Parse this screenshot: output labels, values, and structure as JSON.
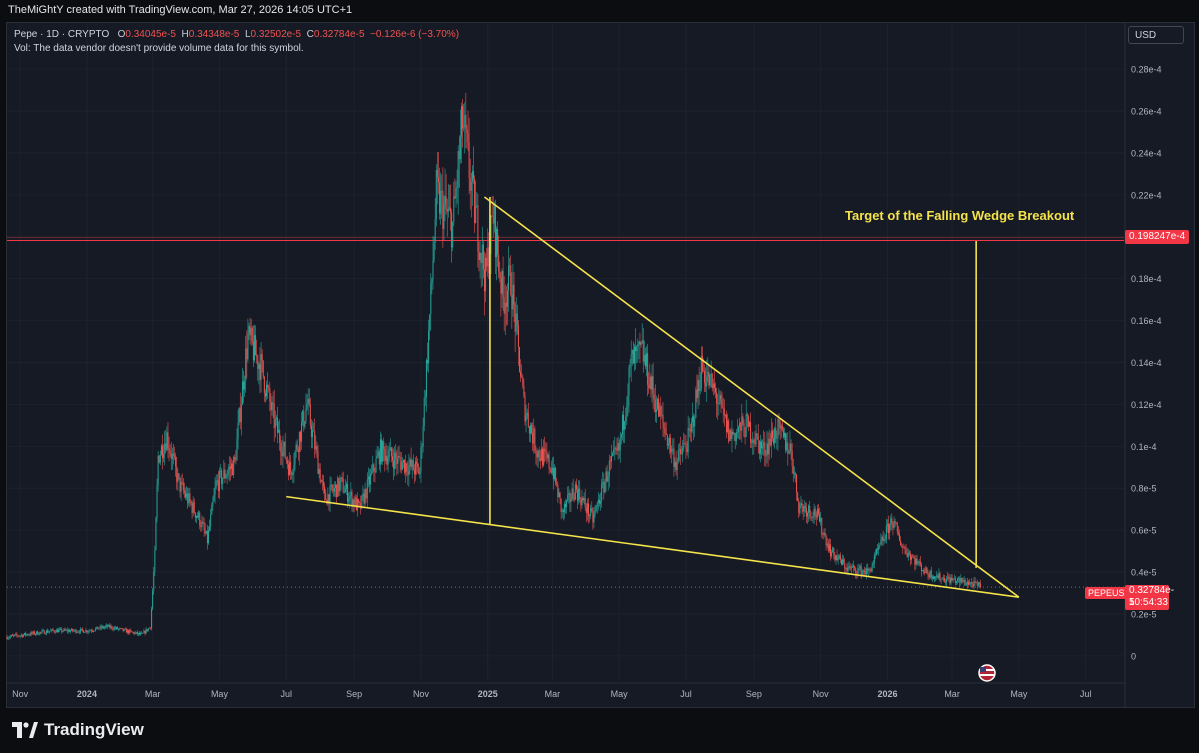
{
  "header": {
    "credit": "TheMiGhtY created with TradingView.com, Mar 27, 2026 14:05 UTC+1"
  },
  "legend": {
    "symbol": "Pepe · 1D · CRYPTO",
    "o_label": "O",
    "o_value": "0.34045e-5",
    "h_label": "H",
    "h_value": "0.34348e-5",
    "l_label": "L",
    "l_value": "0.32502e-5",
    "c_label": "C",
    "c_value": "0.32784e-5",
    "change": "−0.126e-6 (−3.70%)",
    "volume_note": "Vol: The data vendor doesn't provide volume data for this symbol."
  },
  "currency": "USD",
  "tags": {
    "target_price": "0.198247e-4",
    "symbol": "PEPEUSD",
    "last_price": "0.32784e-5",
    "countdown": "10:54:33"
  },
  "annotation": "Target of the Falling Wedge Breakout",
  "branding": "TradingView",
  "colors": {
    "up": "#26a69a",
    "down": "#ef5350",
    "wedge": "#f5e34b",
    "target_line": "#f23645",
    "background": "#161a25"
  },
  "chart_data": {
    "type": "candlestick",
    "symbol": "PEPEUSD",
    "interval": "1D",
    "x_ticks": [
      {
        "label": "Nov",
        "date": "2023-11-01"
      },
      {
        "label": "2024",
        "date": "2024-01-01"
      },
      {
        "label": "Mar",
        "date": "2024-03-01"
      },
      {
        "label": "May",
        "date": "2024-05-01"
      },
      {
        "label": "Jul",
        "date": "2024-07-01"
      },
      {
        "label": "Sep",
        "date": "2024-09-01"
      },
      {
        "label": "Nov",
        "date": "2024-11-01"
      },
      {
        "label": "2025",
        "date": "2025-01-01"
      },
      {
        "label": "Mar",
        "date": "2025-03-01"
      },
      {
        "label": "May",
        "date": "2025-05-01"
      },
      {
        "label": "Jul",
        "date": "2025-07-01"
      },
      {
        "label": "Sep",
        "date": "2025-09-01"
      },
      {
        "label": "Nov",
        "date": "2025-11-01"
      },
      {
        "label": "2026",
        "date": "2026-01-01"
      },
      {
        "label": "Mar",
        "date": "2026-03-01"
      },
      {
        "label": "May",
        "date": "2026-05-01"
      },
      {
        "label": "Jul",
        "date": "2026-07-01"
      }
    ],
    "y_ticks": [
      {
        "label": "0",
        "value": 0
      },
      {
        "label": "0.2e-5",
        "value": 0.2
      },
      {
        "label": "0.4e-5",
        "value": 0.4
      },
      {
        "label": "0.6e-5",
        "value": 0.6
      },
      {
        "label": "0.8e-5",
        "value": 0.8
      },
      {
        "label": "0.1e-4",
        "value": 1.0
      },
      {
        "label": "0.12e-4",
        "value": 1.2
      },
      {
        "label": "0.14e-4",
        "value": 1.4
      },
      {
        "label": "0.16e-4",
        "value": 1.6
      },
      {
        "label": "0.18e-4",
        "value": 1.8
      },
      {
        "label": "0.2e-4",
        "value": 2.0
      },
      {
        "label": "0.22e-4",
        "value": 2.2
      },
      {
        "label": "0.24e-4",
        "value": 2.4
      },
      {
        "label": "0.26e-4",
        "value": 2.6
      },
      {
        "label": "0.28e-4",
        "value": 2.8
      }
    ],
    "x_range": [
      "2023-10-20",
      "2026-08-05"
    ],
    "y_range": [
      -0.12,
      2.92
    ],
    "y_unit": "1e-5 USD",
    "price_path": [
      [
        "2023-10-20",
        0.09
      ],
      [
        "2023-12-01",
        0.12
      ],
      [
        "2024-01-01",
        0.12
      ],
      [
        "2024-01-20",
        0.14
      ],
      [
        "2024-02-20",
        0.1
      ],
      [
        "2024-02-28",
        0.14
      ],
      [
        "2024-03-03",
        0.48
      ],
      [
        "2024-03-06",
        0.95
      ],
      [
        "2024-03-14",
        1.05
      ],
      [
        "2024-03-25",
        0.82
      ],
      [
        "2024-04-13",
        0.65
      ],
      [
        "2024-04-20",
        0.55
      ],
      [
        "2024-04-28",
        0.82
      ],
      [
        "2024-05-15",
        0.92
      ],
      [
        "2024-05-22",
        1.28
      ],
      [
        "2024-05-27",
        1.52
      ],
      [
        "2024-06-08",
        1.38
      ],
      [
        "2024-06-20",
        1.12
      ],
      [
        "2024-07-05",
        0.88
      ],
      [
        "2024-07-20",
        1.2
      ],
      [
        "2024-08-05",
        0.75
      ],
      [
        "2024-08-20",
        0.82
      ],
      [
        "2024-09-06",
        0.7
      ],
      [
        "2024-09-25",
        0.98
      ],
      [
        "2024-10-15",
        0.92
      ],
      [
        "2024-10-31",
        0.88
      ],
      [
        "2024-11-10",
        1.7
      ],
      [
        "2024-11-15",
        2.2
      ],
      [
        "2024-11-30",
        2.05
      ],
      [
        "2024-12-09",
        2.55
      ],
      [
        "2024-12-18",
        2.2
      ],
      [
        "2024-12-30",
        1.8
      ],
      [
        "2025-01-06",
        2.1
      ],
      [
        "2025-01-15",
        1.7
      ],
      [
        "2025-01-22",
        1.8
      ],
      [
        "2025-02-03",
        1.2
      ],
      [
        "2025-02-15",
        0.98
      ],
      [
        "2025-03-01",
        0.9
      ],
      [
        "2025-03-10",
        0.68
      ],
      [
        "2025-03-22",
        0.8
      ],
      [
        "2025-04-07",
        0.65
      ],
      [
        "2025-04-22",
        0.9
      ],
      [
        "2025-05-01",
        0.98
      ],
      [
        "2025-05-12",
        1.4
      ],
      [
        "2025-05-22",
        1.45
      ],
      [
        "2025-06-05",
        1.18
      ],
      [
        "2025-06-22",
        0.92
      ],
      [
        "2025-07-05",
        1.05
      ],
      [
        "2025-07-15",
        1.38
      ],
      [
        "2025-07-28",
        1.25
      ],
      [
        "2025-08-10",
        1.05
      ],
      [
        "2025-08-25",
        1.1
      ],
      [
        "2025-09-10",
        0.98
      ],
      [
        "2025-09-22",
        1.08
      ],
      [
        "2025-10-05",
        0.98
      ],
      [
        "2025-10-12",
        0.72
      ],
      [
        "2025-10-28",
        0.68
      ],
      [
        "2025-11-10",
        0.5
      ],
      [
        "2025-11-25",
        0.42
      ],
      [
        "2025-12-15",
        0.4
      ],
      [
        "2026-01-05",
        0.65
      ],
      [
        "2026-01-15",
        0.52
      ],
      [
        "2026-02-05",
        0.4
      ],
      [
        "2026-02-20",
        0.37
      ],
      [
        "2026-03-05",
        0.36
      ],
      [
        "2026-03-15",
        0.35
      ],
      [
        "2026-03-27",
        0.33
      ]
    ],
    "wedge": {
      "upper": [
        [
          "2024-12-29",
          2.19
        ],
        [
          "2026-05-01",
          0.28
        ]
      ],
      "lower": [
        [
          "2024-07-01",
          0.76
        ],
        [
          "2026-05-01",
          0.28
        ]
      ],
      "entry_measure": [
        [
          "2025-01-03",
          2.19
        ],
        [
          "2025-01-03",
          0.63
        ]
      ],
      "breakout_measure": [
        [
          "2026-03-23",
          1.98
        ],
        [
          "2026-03-23",
          0.42
        ]
      ]
    },
    "target_line": {
      "value": 1.98247,
      "label": "0.198247e-4"
    },
    "last_price_line": {
      "value": 0.32784
    }
  }
}
